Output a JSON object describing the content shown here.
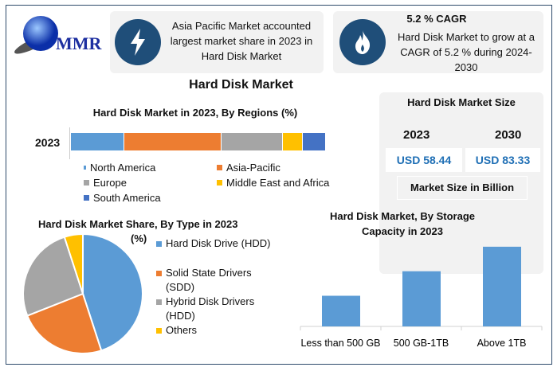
{
  "logo": {
    "text": "MMR"
  },
  "card1": {
    "text": "Asia Pacific Market accounted largest market share in 2023 in Hard Disk Market",
    "icon": "lightning-icon"
  },
  "card2": {
    "title": "5.2 % CAGR",
    "text": "Hard Disk Market to grow at a CAGR of 5.2 % during 2024-2030",
    "icon": "flame-icon"
  },
  "main_title": "Hard Disk Market",
  "market_size": {
    "title": "Hard Disk Market Size",
    "year1": "2023",
    "year2": "2030",
    "value1": "USD 58.44",
    "value2": "USD 83.33",
    "unit": "Market Size in Billion"
  },
  "colors": {
    "blue": "#5b9bd5",
    "orange": "#ed7d31",
    "gray": "#a5a5a5",
    "yellow": "#ffc000",
    "darkblue": "#4472c4",
    "navy": "#1f4e79"
  },
  "chart_data": [
    {
      "type": "bar",
      "orientation": "horizontal-stacked",
      "title": "Hard Disk Market in 2023, By Regions (%)",
      "categories": [
        "2023"
      ],
      "series": [
        {
          "name": "North America",
          "values": [
            21
          ],
          "color": "#5b9bd5"
        },
        {
          "name": "Asia-Pacific",
          "values": [
            38
          ],
          "color": "#ed7d31"
        },
        {
          "name": "Europe",
          "values": [
            24
          ],
          "color": "#a5a5a5"
        },
        {
          "name": "Middle East and Africa",
          "values": [
            8
          ],
          "color": "#ffc000"
        },
        {
          "name": "South America",
          "values": [
            9
          ],
          "color": "#4472c4"
        }
      ],
      "legend": "bottom"
    },
    {
      "type": "pie",
      "title": "Hard Disk Market Share, By Type in 2023",
      "title2": "(%)",
      "labels": [
        "Hard Disk Drive (HDD)",
        "Solid State Drivers (SDD)",
        "Hybrid Disk Drivers (HDD)",
        "Others"
      ],
      "legend_lines": [
        [
          "Hard Disk Drive (HDD)"
        ],
        [
          "Solid State Drivers",
          "(SDD)"
        ],
        [
          "Hybrid Disk Drivers",
          "(HDD)"
        ],
        [
          "Others"
        ]
      ],
      "values": [
        45,
        24,
        26,
        5
      ],
      "colors": [
        "#5b9bd5",
        "#ed7d31",
        "#a5a5a5",
        "#ffc000"
      ],
      "legend": "right"
    },
    {
      "type": "bar",
      "title": "Hard Disk Market, By Storage Capacity in 2023",
      "categories": [
        "Less than 500 GB",
        "500 GB-1TB",
        "Above 1TB"
      ],
      "values": [
        35,
        63,
        91
      ],
      "ylim": [
        0,
        100
      ],
      "color": "#5b9bd5"
    }
  ]
}
